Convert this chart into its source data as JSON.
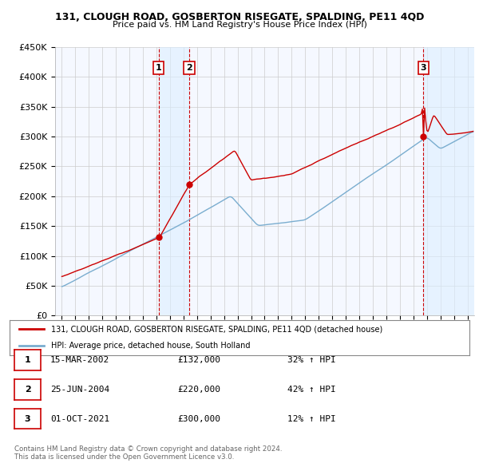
{
  "title1": "131, CLOUGH ROAD, GOSBERTON RISEGATE, SPALDING, PE11 4QD",
  "title2": "Price paid vs. HM Land Registry's House Price Index (HPI)",
  "ylim": [
    0,
    450000
  ],
  "yticks": [
    0,
    50000,
    100000,
    150000,
    200000,
    250000,
    300000,
    350000,
    400000,
    450000
  ],
  "ytick_labels": [
    "£0",
    "£50K",
    "£100K",
    "£150K",
    "£200K",
    "£250K",
    "£300K",
    "£350K",
    "£400K",
    "£450K"
  ],
  "sale_prices": [
    132000,
    220000,
    300000
  ],
  "sale_labels": [
    "1",
    "2",
    "3"
  ],
  "legend_line1": "131, CLOUGH ROAD, GOSBERTON RISEGATE, SPALDING, PE11 4QD (detached house)",
  "legend_line2": "HPI: Average price, detached house, South Holland",
  "table_rows": [
    [
      "1",
      "15-MAR-2002",
      "£132,000",
      "32% ↑ HPI"
    ],
    [
      "2",
      "25-JUN-2004",
      "£220,000",
      "42% ↑ HPI"
    ],
    [
      "3",
      "01-OCT-2021",
      "£300,000",
      "12% ↑ HPI"
    ]
  ],
  "footnote": "Contains HM Land Registry data © Crown copyright and database right 2024.\nThis data is licensed under the Open Government Licence v3.0.",
  "line_color_red": "#cc0000",
  "line_color_blue": "#7aadcf",
  "grid_color": "#cccccc",
  "vband_color": "#ddeeff",
  "vline_color": "#cc0000"
}
